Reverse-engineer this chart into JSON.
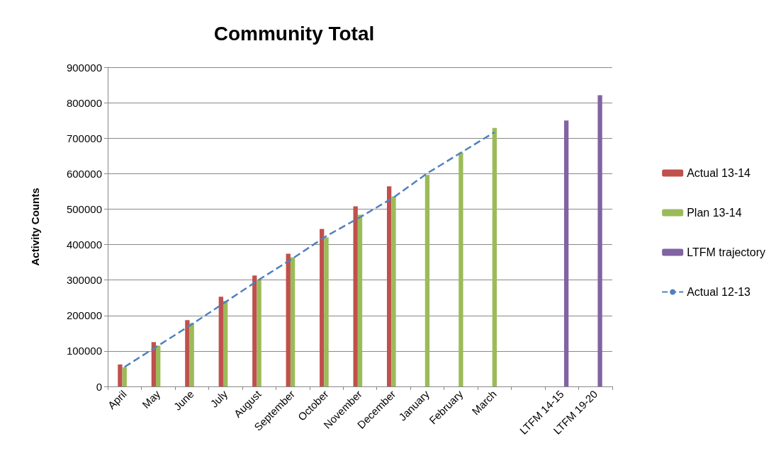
{
  "chart_data": {
    "type": "bar",
    "title": "Community Total",
    "ylabel": "Activity Counts",
    "categories": [
      "April",
      "May",
      "June",
      "July",
      "August",
      "September",
      "October",
      "November",
      "December",
      "January",
      "February",
      "March",
      null,
      "LTFM 14-15",
      "LTFM 19-20"
    ],
    "series": [
      {
        "name": "Actual 13-14",
        "color": "#c0504d",
        "values": [
          62000,
          125000,
          187000,
          253000,
          313000,
          374000,
          444000,
          508000,
          564000,
          null,
          null,
          null,
          null,
          null,
          null
        ]
      },
      {
        "name": "Plan 13-14",
        "color": "#9bbb59",
        "values": [
          54000,
          115000,
          179000,
          241000,
          301000,
          364000,
          420000,
          484000,
          536000,
          596000,
          659000,
          729000,
          null,
          null,
          null
        ]
      },
      {
        "name": "LTFM trajectory",
        "color": "#8064a2",
        "values": [
          null,
          null,
          null,
          null,
          null,
          null,
          null,
          null,
          null,
          null,
          null,
          null,
          null,
          750000,
          821000
        ]
      },
      {
        "name": "Actual 12-13",
        "type": "line",
        "color": "#4f81bd",
        "line_style": "dashed",
        "marker": "none",
        "values": [
          55000,
          115000,
          175000,
          238000,
          301000,
          361000,
          424000,
          477000,
          533000,
          601000,
          659000,
          717000,
          null,
          null,
          null
        ]
      }
    ],
    "ylim": [
      0,
      900000
    ],
    "yticks": [
      0,
      100000,
      200000,
      300000,
      400000,
      500000,
      600000,
      700000,
      800000,
      900000
    ],
    "grid": "y",
    "legend": "right"
  }
}
